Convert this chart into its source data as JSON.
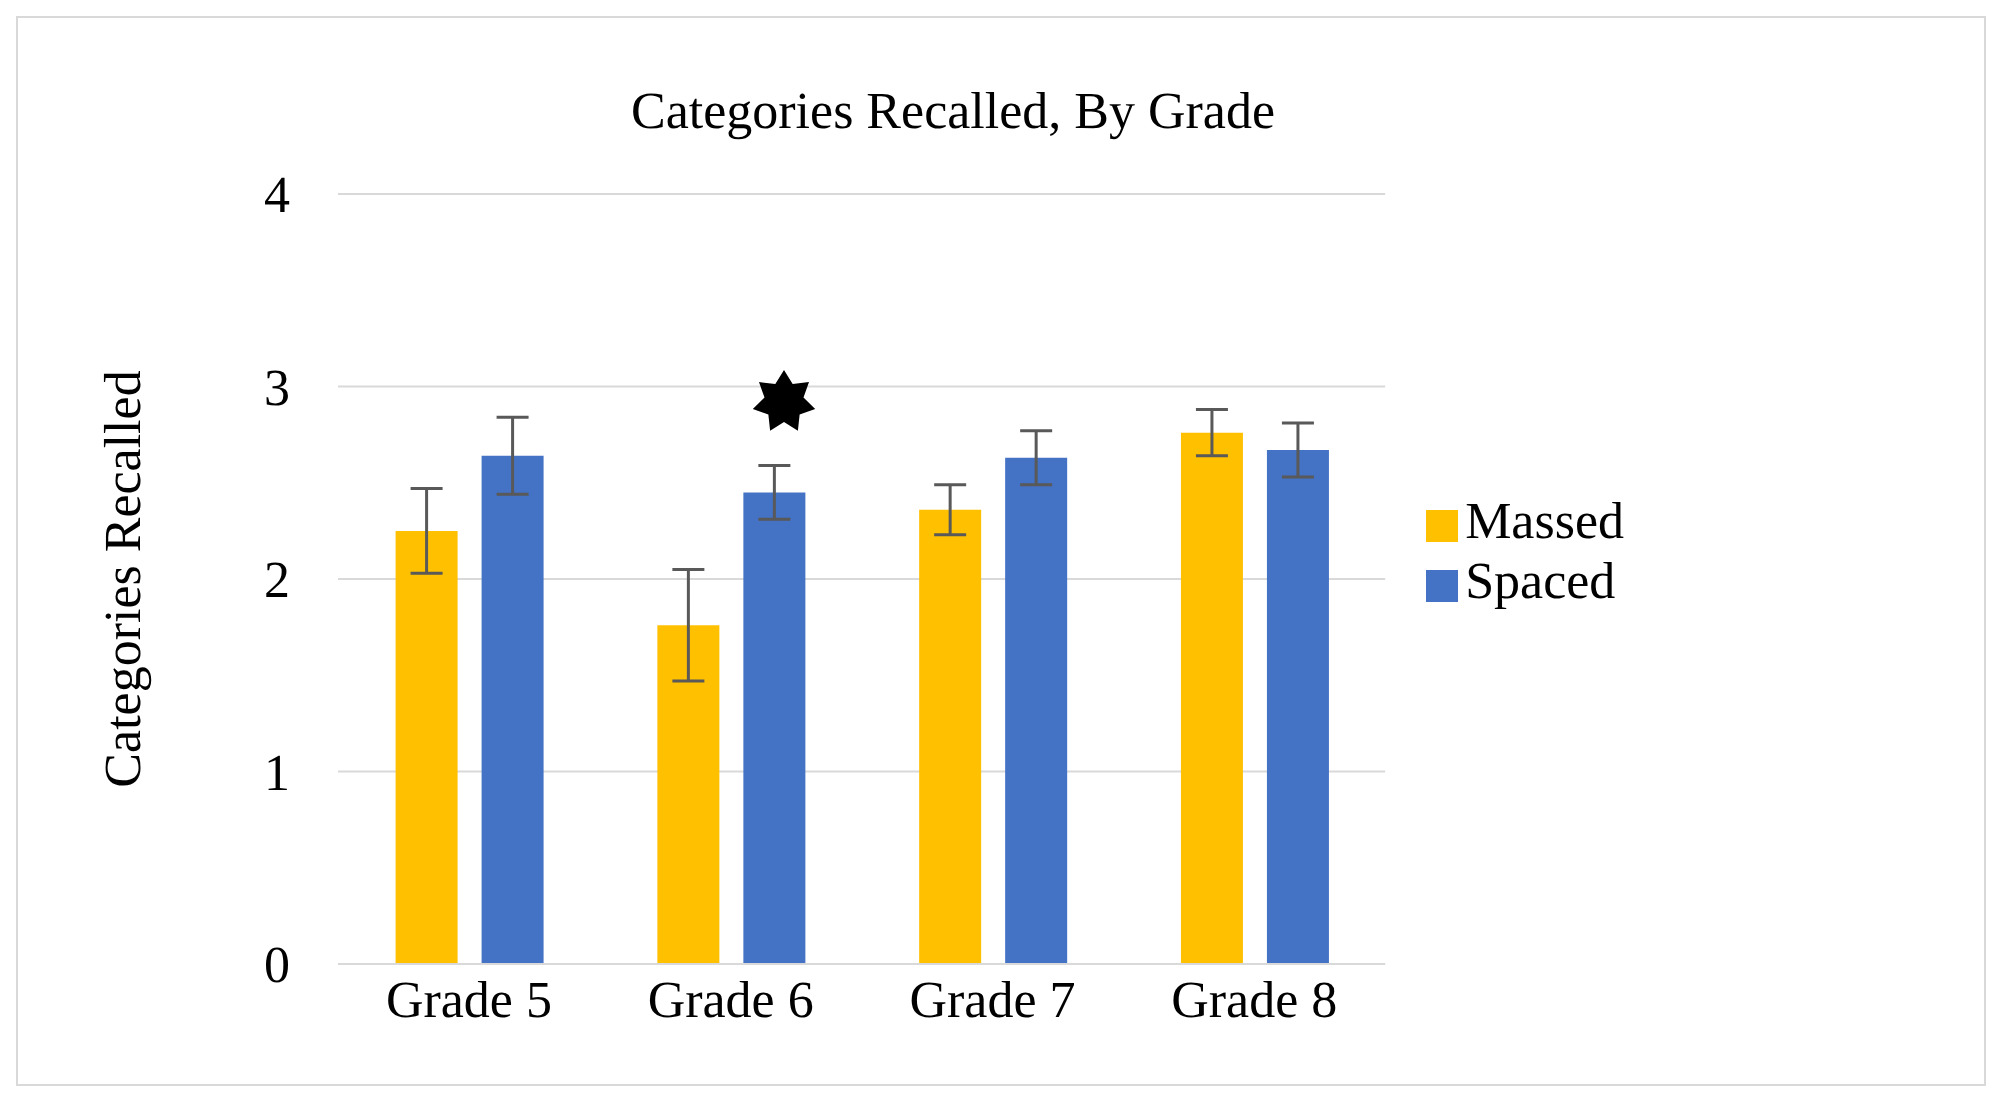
{
  "chart_data": {
    "type": "bar",
    "title": "Categories Recalled, By Grade",
    "ylabel": "Categories Recalled",
    "categories": [
      "Grade 5",
      "Grade 6",
      "Grade 7",
      "Grade 8"
    ],
    "series": [
      {
        "name": "Massed",
        "color": "#ffc000",
        "values": [
          2.25,
          1.76,
          2.36,
          2.76
        ],
        "errors": [
          0.22,
          0.29,
          0.13,
          0.12
        ]
      },
      {
        "name": "Spaced",
        "color": "#4472c4",
        "values": [
          2.64,
          2.45,
          2.63,
          2.67
        ],
        "errors": [
          0.2,
          0.14,
          0.14,
          0.14
        ]
      }
    ],
    "ylim": [
      0,
      4
    ],
    "yticks": [
      0,
      1,
      2,
      3,
      4
    ],
    "grid": "y",
    "legend": "right"
  }
}
